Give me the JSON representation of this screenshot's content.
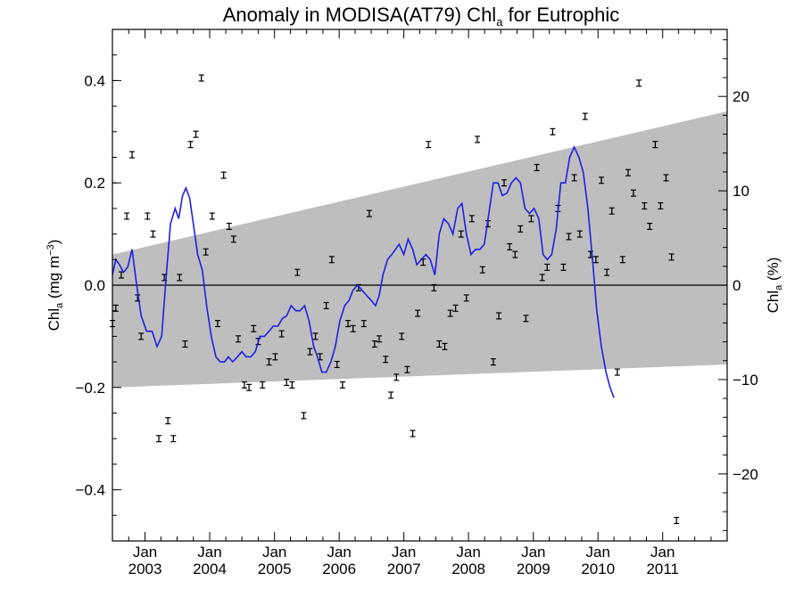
{
  "chart_data": {
    "type": "line",
    "title": "Anomaly in MODISA(AT79) Chl",
    "title_subscript": "a",
    "title_suffix": " for Eutrophic",
    "ylabel_left": {
      "base": "Chl",
      "sub": "a",
      "rest": " (mg m",
      "sup": "−3",
      "close": ")"
    },
    "ylabel_right": {
      "base": "Chl",
      "sub": "a",
      "rest": " (%)"
    },
    "x_range": [
      "2002-07-01",
      "2011-12-31"
    ],
    "ylim_left": [
      -0.5,
      0.5
    ],
    "ylim_right": [
      -27.1,
      27.1
    ],
    "left_ticks": [
      {
        "value": -0.4,
        "label": "−0.4"
      },
      {
        "value": -0.2,
        "label": "−0.2"
      },
      {
        "value": 0.0,
        "label": "0.0"
      },
      {
        "value": 0.2,
        "label": "0.2"
      },
      {
        "value": 0.4,
        "label": "0.4"
      }
    ],
    "right_ticks": [
      {
        "value": -20,
        "label": "−20"
      },
      {
        "value": -10,
        "label": "−10"
      },
      {
        "value": 0,
        "label": "0"
      },
      {
        "value": 10,
        "label": "10"
      },
      {
        "value": 20,
        "label": "20"
      }
    ],
    "x_ticks": [
      {
        "date": "2003-01-01",
        "label": "Jan",
        "year": "2003"
      },
      {
        "date": "2004-01-01",
        "label": "Jan",
        "year": "2004"
      },
      {
        "date": "2005-01-01",
        "label": "Jan",
        "year": "2005"
      },
      {
        "date": "2006-01-01",
        "label": "Jan",
        "year": "2006"
      },
      {
        "date": "2007-01-01",
        "label": "Jan",
        "year": "2007"
      },
      {
        "date": "2008-01-01",
        "label": "Jan",
        "year": "2008"
      },
      {
        "date": "2009-01-01",
        "label": "Jan",
        "year": "2009"
      },
      {
        "date": "2010-01-01",
        "label": "Jan",
        "year": "2010"
      },
      {
        "date": "2011-01-01",
        "label": "Jan",
        "year": "2011"
      }
    ],
    "trend_band": {
      "start": {
        "date": "2002-07-01",
        "upper": 0.06,
        "lower": -0.2
      },
      "end": {
        "date": "2011-12-31",
        "upper": 0.34,
        "lower": -0.155
      },
      "color": "#bebebe"
    },
    "error_half_width": 0.006,
    "points": [
      [
        "2002-07-01",
        -0.075
      ],
      [
        "2002-07-20",
        -0.045
      ],
      [
        "2002-08-20",
        0.02
      ],
      [
        "2002-09-20",
        0.135
      ],
      [
        "2002-10-20",
        0.255
      ],
      [
        "2002-11-20",
        -0.025
      ],
      [
        "2002-12-10",
        -0.1
      ],
      [
        "2003-01-15",
        0.135
      ],
      [
        "2003-02-15",
        0.1
      ],
      [
        "2003-03-20",
        -0.3
      ],
      [
        "2003-04-20",
        0.015
      ],
      [
        "2003-05-10",
        -0.265
      ],
      [
        "2003-06-10",
        -0.3
      ],
      [
        "2003-07-15",
        0.015
      ],
      [
        "2003-08-15",
        -0.115
      ],
      [
        "2003-09-15",
        0.275
      ],
      [
        "2003-10-15",
        0.295
      ],
      [
        "2003-11-15",
        0.405
      ],
      [
        "2003-12-10",
        0.065
      ],
      [
        "2004-01-15",
        0.135
      ],
      [
        "2004-02-15",
        -0.075
      ],
      [
        "2004-03-20",
        0.215
      ],
      [
        "2004-04-20",
        0.115
      ],
      [
        "2004-05-15",
        0.09
      ],
      [
        "2004-06-10",
        -0.105
      ],
      [
        "2004-07-15",
        -0.195
      ],
      [
        "2004-08-10",
        -0.2
      ],
      [
        "2004-09-05",
        -0.085
      ],
      [
        "2004-10-01",
        -0.11
      ],
      [
        "2004-10-25",
        -0.195
      ],
      [
        "2004-12-01",
        -0.15
      ],
      [
        "2005-01-05",
        -0.14
      ],
      [
        "2005-02-10",
        -0.095
      ],
      [
        "2005-03-10",
        -0.19
      ],
      [
        "2005-04-10",
        -0.195
      ],
      [
        "2005-05-10",
        0.025
      ],
      [
        "2005-06-15",
        -0.255
      ],
      [
        "2005-07-20",
        -0.13
      ],
      [
        "2005-08-20",
        -0.1
      ],
      [
        "2005-09-15",
        -0.14
      ],
      [
        "2005-10-20",
        -0.04
      ],
      [
        "2005-11-20",
        0.05
      ],
      [
        "2005-12-20",
        -0.155
      ],
      [
        "2006-01-20",
        -0.195
      ],
      [
        "2006-02-20",
        -0.075
      ],
      [
        "2006-03-20",
        -0.085
      ],
      [
        "2006-04-20",
        -0.005
      ],
      [
        "2006-05-20",
        -0.075
      ],
      [
        "2006-06-20",
        0.14
      ],
      [
        "2006-07-20",
        -0.115
      ],
      [
        "2006-08-15",
        -0.105
      ],
      [
        "2006-09-20",
        -0.145
      ],
      [
        "2006-10-20",
        -0.215
      ],
      [
        "2006-11-20",
        -0.18
      ],
      [
        "2006-12-20",
        -0.1
      ],
      [
        "2007-01-20",
        -0.165
      ],
      [
        "2007-02-20",
        -0.29
      ],
      [
        "2007-03-20",
        -0.055
      ],
      [
        "2007-04-20",
        0.045
      ],
      [
        "2007-05-20",
        0.275
      ],
      [
        "2007-06-20",
        -0.005
      ],
      [
        "2007-07-20",
        -0.115
      ],
      [
        "2007-08-20",
        -0.12
      ],
      [
        "2007-09-20",
        -0.055
      ],
      [
        "2007-10-20",
        -0.045
      ],
      [
        "2007-11-20",
        0.1
      ],
      [
        "2007-12-20",
        -0.025
      ],
      [
        "2008-01-20",
        0.13
      ],
      [
        "2008-02-20",
        0.285
      ],
      [
        "2008-03-20",
        0.03
      ],
      [
        "2008-04-20",
        0.12
      ],
      [
        "2008-05-20",
        -0.15
      ],
      [
        "2008-06-20",
        -0.06
      ],
      [
        "2008-07-20",
        0.2
      ],
      [
        "2008-08-20",
        0.075
      ],
      [
        "2008-09-20",
        0.06
      ],
      [
        "2008-10-20",
        0.11
      ],
      [
        "2008-11-20",
        -0.065
      ],
      [
        "2008-12-20",
        0.13
      ],
      [
        "2009-01-20",
        0.23
      ],
      [
        "2009-02-20",
        0.015
      ],
      [
        "2009-03-20",
        0.035
      ],
      [
        "2009-04-20",
        0.3
      ],
      [
        "2009-05-20",
        0.15
      ],
      [
        "2009-06-20",
        0.035
      ],
      [
        "2009-07-20",
        0.095
      ],
      [
        "2009-08-20",
        0.21
      ],
      [
        "2009-09-20",
        0.1
      ],
      [
        "2009-10-20",
        0.33
      ],
      [
        "2009-11-20",
        0.06
      ],
      [
        "2009-12-20",
        0.05
      ],
      [
        "2010-01-20",
        0.205
      ],
      [
        "2010-02-20",
        0.025
      ],
      [
        "2010-03-20",
        0.145
      ],
      [
        "2010-04-20",
        -0.17
      ],
      [
        "2010-05-20",
        0.05
      ],
      [
        "2010-06-20",
        0.22
      ],
      [
        "2010-07-20",
        0.18
      ],
      [
        "2010-08-20",
        0.395
      ],
      [
        "2010-09-20",
        0.155
      ],
      [
        "2010-10-20",
        0.115
      ],
      [
        "2010-11-20",
        0.275
      ],
      [
        "2010-12-20",
        0.155
      ],
      [
        "2011-01-20",
        0.21
      ],
      [
        "2011-02-20",
        0.055
      ],
      [
        "2011-03-20",
        -0.46
      ]
    ],
    "smooth_line": {
      "color": "#1f1fe6",
      "values": [
        [
          "2002-07-01",
          0.02
        ],
        [
          "2002-07-20",
          0.05
        ],
        [
          "2002-08-10",
          0.04
        ],
        [
          "2002-09-01",
          0.025
        ],
        [
          "2002-09-25",
          0.035
        ],
        [
          "2002-10-20",
          0.07
        ],
        [
          "2002-11-15",
          0.0
        ],
        [
          "2002-12-10",
          -0.06
        ],
        [
          "2003-01-10",
          -0.09
        ],
        [
          "2003-02-10",
          -0.09
        ],
        [
          "2003-03-10",
          -0.12
        ],
        [
          "2003-04-05",
          -0.1
        ],
        [
          "2003-05-01",
          0.02
        ],
        [
          "2003-05-25",
          0.12
        ],
        [
          "2003-06-20",
          0.15
        ],
        [
          "2003-07-10",
          0.13
        ],
        [
          "2003-08-01",
          0.175
        ],
        [
          "2003-08-20",
          0.19
        ],
        [
          "2003-09-10",
          0.17
        ],
        [
          "2003-10-01",
          0.12
        ],
        [
          "2003-10-25",
          0.06
        ],
        [
          "2003-11-20",
          0.03
        ],
        [
          "2003-12-15",
          -0.04
        ],
        [
          "2004-01-10",
          -0.1
        ],
        [
          "2004-02-05",
          -0.14
        ],
        [
          "2004-03-01",
          -0.15
        ],
        [
          "2004-03-25",
          -0.15
        ],
        [
          "2004-04-15",
          -0.14
        ],
        [
          "2004-05-10",
          -0.15
        ],
        [
          "2004-06-05",
          -0.14
        ],
        [
          "2004-07-01",
          -0.13
        ],
        [
          "2004-07-25",
          -0.14
        ],
        [
          "2004-08-20",
          -0.14
        ],
        [
          "2004-09-15",
          -0.13
        ],
        [
          "2004-10-10",
          -0.1
        ],
        [
          "2004-11-05",
          -0.1
        ],
        [
          "2004-12-01",
          -0.09
        ],
        [
          "2004-12-25",
          -0.08
        ],
        [
          "2005-01-20",
          -0.08
        ],
        [
          "2005-02-15",
          -0.065
        ],
        [
          "2005-03-10",
          -0.06
        ],
        [
          "2005-04-05",
          -0.04
        ],
        [
          "2005-05-01",
          -0.05
        ],
        [
          "2005-05-25",
          -0.05
        ],
        [
          "2005-06-20",
          -0.04
        ],
        [
          "2005-07-15",
          -0.07
        ],
        [
          "2005-08-10",
          -0.12
        ],
        [
          "2005-09-01",
          -0.14
        ],
        [
          "2005-09-25",
          -0.17
        ],
        [
          "2005-10-20",
          -0.17
        ],
        [
          "2005-11-15",
          -0.15
        ],
        [
          "2005-12-10",
          -0.12
        ],
        [
          "2006-01-05",
          -0.07
        ],
        [
          "2006-02-01",
          -0.04
        ],
        [
          "2006-02-25",
          -0.03
        ],
        [
          "2006-03-20",
          -0.01
        ],
        [
          "2006-04-15",
          0.0
        ],
        [
          "2006-05-10",
          -0.01
        ],
        [
          "2006-06-05",
          -0.02
        ],
        [
          "2006-07-01",
          -0.03
        ],
        [
          "2006-07-25",
          -0.04
        ],
        [
          "2006-08-15",
          -0.02
        ],
        [
          "2006-09-05",
          0.02
        ],
        [
          "2006-10-01",
          0.05
        ],
        [
          "2006-10-25",
          0.06
        ],
        [
          "2006-11-15",
          0.07
        ],
        [
          "2006-12-05",
          0.08
        ],
        [
          "2007-01-01",
          0.06
        ],
        [
          "2007-01-25",
          0.09
        ],
        [
          "2007-02-20",
          0.07
        ],
        [
          "2007-03-15",
          0.04
        ],
        [
          "2007-04-10",
          0.05
        ],
        [
          "2007-05-05",
          0.06
        ],
        [
          "2007-05-30",
          0.05
        ],
        [
          "2007-06-25",
          0.02
        ],
        [
          "2007-07-20",
          0.1
        ],
        [
          "2007-08-15",
          0.13
        ],
        [
          "2007-09-10",
          0.12
        ],
        [
          "2007-10-05",
          0.1
        ],
        [
          "2007-11-01",
          0.15
        ],
        [
          "2007-11-25",
          0.16
        ],
        [
          "2007-12-20",
          0.1
        ],
        [
          "2008-01-15",
          0.06
        ],
        [
          "2008-02-10",
          0.07
        ],
        [
          "2008-03-05",
          0.07
        ],
        [
          "2008-03-30",
          0.08
        ],
        [
          "2008-04-25",
          0.14
        ],
        [
          "2008-05-20",
          0.2
        ],
        [
          "2008-06-15",
          0.2
        ],
        [
          "2008-07-10",
          0.175
        ],
        [
          "2008-08-05",
          0.18
        ],
        [
          "2008-08-30",
          0.2
        ],
        [
          "2008-09-25",
          0.21
        ],
        [
          "2008-10-20",
          0.2
        ],
        [
          "2008-11-15",
          0.15
        ],
        [
          "2008-12-10",
          0.14
        ],
        [
          "2009-01-05",
          0.15
        ],
        [
          "2009-02-01",
          0.13
        ],
        [
          "2009-02-25",
          0.06
        ],
        [
          "2009-03-20",
          0.05
        ],
        [
          "2009-04-15",
          0.06
        ],
        [
          "2009-05-10",
          0.11
        ],
        [
          "2009-06-05",
          0.2
        ],
        [
          "2009-07-01",
          0.2
        ],
        [
          "2009-07-25",
          0.25
        ],
        [
          "2009-08-20",
          0.27
        ],
        [
          "2009-09-15",
          0.25
        ],
        [
          "2009-10-10",
          0.22
        ],
        [
          "2009-11-05",
          0.15
        ],
        [
          "2009-12-01",
          0.05
        ],
        [
          "2009-12-25",
          -0.05
        ],
        [
          "2010-01-20",
          -0.12
        ],
        [
          "2010-02-15",
          -0.17
        ],
        [
          "2010-03-10",
          -0.2
        ],
        [
          "2010-04-01",
          -0.22
        ]
      ]
    }
  }
}
